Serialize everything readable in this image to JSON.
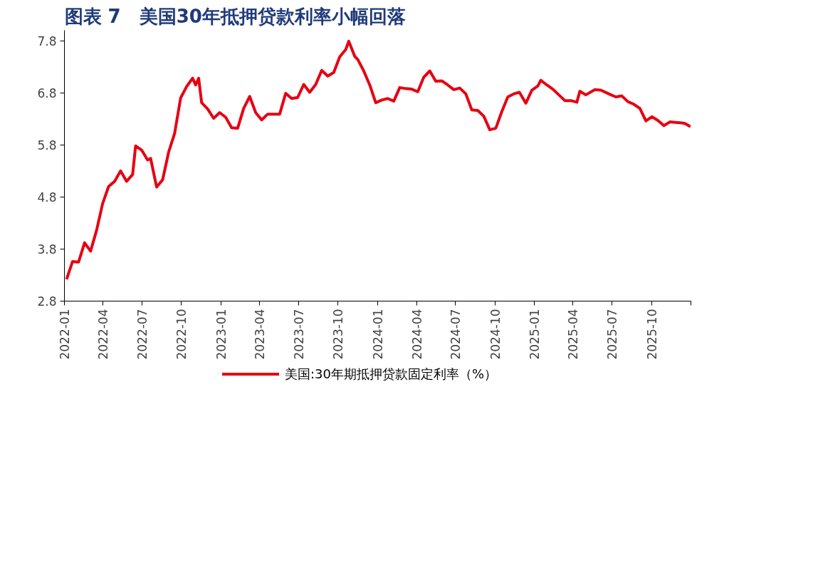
{
  "chart_data": {
    "type": "line",
    "title": "图表 7　美国30年抵押贷款利率小幅回落",
    "xlim": [
      "2022-01",
      "2026-01"
    ],
    "xticks": [
      "2022-01",
      "2022-04",
      "2022-07",
      "2022-10",
      "2023-01",
      "2023-04",
      "2023-07",
      "2023-10",
      "2024-01",
      "2024-04",
      "2024-07",
      "2024-10",
      "2025-01",
      "2025-04",
      "2025-07",
      "2025-10",
      {
        "value": "2026-01",
        "label": null
      }
    ],
    "ylim": [
      2.8,
      8.0
    ],
    "yticks": [
      2.8,
      3.8,
      4.8,
      5.8,
      6.8,
      7.8
    ],
    "grid": false,
    "legend": "bottom",
    "marker": "none",
    "line_style": "solid",
    "series": [
      {
        "name": "美国:30年期抵押贷款固定利率（%）",
        "color": "#e60012",
        "x": [
          "2022-01-06",
          "2022-01-20",
          "2022-02-03",
          "2022-02-17",
          "2022-03-03",
          "2022-03-17",
          "2022-03-31",
          "2022-04-14",
          "2022-04-28",
          "2022-05-12",
          "2022-05-26",
          "2022-06-09",
          "2022-06-16",
          "2022-06-30",
          "2022-07-14",
          "2022-07-21",
          "2022-08-04",
          "2022-08-18",
          "2022-09-01",
          "2022-09-15",
          "2022-09-29",
          "2022-10-13",
          "2022-10-27",
          "2022-11-03",
          "2022-11-10",
          "2022-11-17",
          "2022-12-01",
          "2022-12-15",
          "2022-12-29",
          "2023-01-12",
          "2023-01-26",
          "2023-02-09",
          "2023-02-23",
          "2023-03-09",
          "2023-03-23",
          "2023-04-06",
          "2023-04-20",
          "2023-05-04",
          "2023-05-18",
          "2023-06-01",
          "2023-06-15",
          "2023-06-29",
          "2023-07-13",
          "2023-07-27",
          "2023-08-10",
          "2023-08-24",
          "2023-09-07",
          "2023-09-21",
          "2023-10-05",
          "2023-10-19",
          "2023-10-26",
          "2023-11-09",
          "2023-11-16",
          "2023-11-30",
          "2023-12-14",
          "2023-12-28",
          "2024-01-11",
          "2024-01-25",
          "2024-02-08",
          "2024-02-22",
          "2024-03-07",
          "2024-03-21",
          "2024-04-04",
          "2024-04-18",
          "2024-05-02",
          "2024-05-16",
          "2024-05-30",
          "2024-06-13",
          "2024-06-27",
          "2024-07-11",
          "2024-07-25",
          "2024-08-08",
          "2024-08-22",
          "2024-09-05",
          "2024-09-19",
          "2024-10-03",
          "2024-10-17",
          "2024-10-31",
          "2024-11-14",
          "2024-11-27",
          "2024-12-12",
          "2024-12-26",
          "2025-01-09",
          "2025-01-16",
          "2025-01-30",
          "2025-02-13",
          "2025-02-27",
          "2025-03-13",
          "2025-03-27",
          "2025-04-10",
          "2025-04-17",
          "2025-05-01",
          "2025-05-22",
          "2025-06-05",
          "2025-06-26",
          "2025-07-10",
          "2025-07-24",
          "2025-08-07",
          "2025-08-21",
          "2025-09-04",
          "2025-09-18",
          "2025-10-02",
          "2025-10-16",
          "2025-10-30",
          "2025-11-13",
          "2025-11-26",
          "2025-12-11",
          "2025-12-18",
          "2025-12-31"
        ],
        "values": [
          3.22,
          3.56,
          3.55,
          3.92,
          3.76,
          4.16,
          4.67,
          5.0,
          5.1,
          5.3,
          5.1,
          5.23,
          5.78,
          5.7,
          5.51,
          5.54,
          4.99,
          5.13,
          5.66,
          6.02,
          6.7,
          6.92,
          7.08,
          6.95,
          7.08,
          6.61,
          6.49,
          6.31,
          6.42,
          6.33,
          6.13,
          6.12,
          6.5,
          6.73,
          6.42,
          6.28,
          6.39,
          6.39,
          6.39,
          6.79,
          6.69,
          6.71,
          6.96,
          6.81,
          6.96,
          7.23,
          7.12,
          7.19,
          7.49,
          7.63,
          7.79,
          7.5,
          7.44,
          7.22,
          6.95,
          6.61,
          6.66,
          6.69,
          6.64,
          6.9,
          6.88,
          6.87,
          6.82,
          7.1,
          7.22,
          7.02,
          7.03,
          6.95,
          6.86,
          6.89,
          6.78,
          6.47,
          6.46,
          6.35,
          6.09,
          6.12,
          6.44,
          6.72,
          6.78,
          6.81,
          6.6,
          6.85,
          6.93,
          7.04,
          6.95,
          6.87,
          6.76,
          6.65,
          6.65,
          6.62,
          6.83,
          6.76,
          6.86,
          6.85,
          6.77,
          6.72,
          6.74,
          6.63,
          6.58,
          6.5,
          6.26,
          6.34,
          6.27,
          6.17,
          6.24,
          6.23,
          6.22,
          6.21,
          6.15
        ]
      }
    ]
  }
}
